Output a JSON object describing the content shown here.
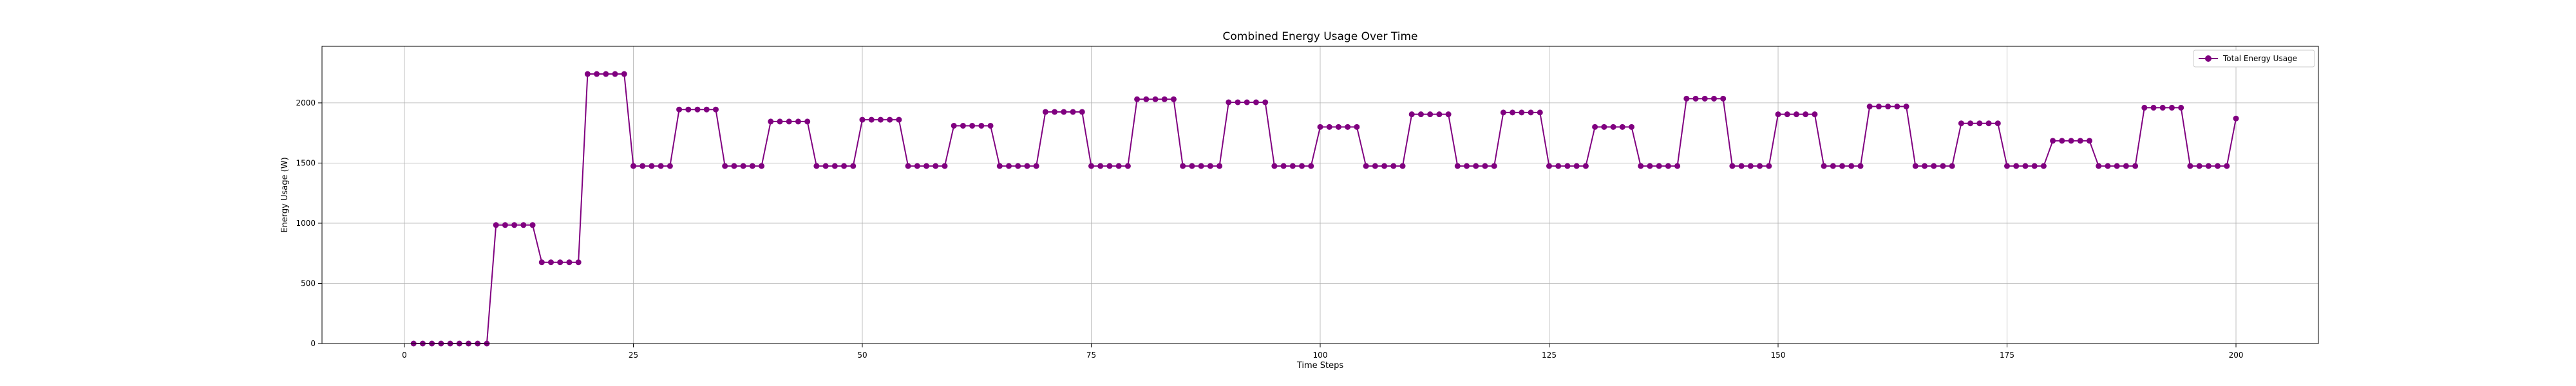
{
  "chart_data": {
    "type": "line",
    "title": "Combined Energy Usage Over Time",
    "xlabel": "Time Steps",
    "ylabel": "Energy Usage (W)",
    "xlim": [
      -9,
      209
    ],
    "ylim": [
      0,
      2470
    ],
    "x_ticks": [
      0,
      25,
      50,
      75,
      100,
      125,
      150,
      175,
      200
    ],
    "y_ticks": [
      0,
      500,
      1000,
      1500,
      2000
    ],
    "grid": true,
    "legend_position": "top-right",
    "series": [
      {
        "name": "Total Energy Usage",
        "color": "#800080",
        "marker": "circle",
        "start_x": 1,
        "x_step": 1,
        "values": [
          0,
          0,
          0,
          0,
          0,
          0,
          0,
          0,
          0,
          985,
          985,
          985,
          985,
          985,
          675,
          675,
          675,
          675,
          675,
          2240,
          2240,
          2240,
          2240,
          2240,
          1475,
          1475,
          1475,
          1475,
          1475,
          1945,
          1945,
          1945,
          1945,
          1945,
          1475,
          1475,
          1475,
          1475,
          1475,
          1845,
          1845,
          1845,
          1845,
          1845,
          1475,
          1475,
          1475,
          1475,
          1475,
          1860,
          1860,
          1860,
          1860,
          1860,
          1475,
          1475,
          1475,
          1475,
          1475,
          1810,
          1810,
          1810,
          1810,
          1810,
          1475,
          1475,
          1475,
          1475,
          1475,
          1925,
          1925,
          1925,
          1925,
          1925,
          1475,
          1475,
          1475,
          1475,
          1475,
          2030,
          2030,
          2030,
          2030,
          2030,
          1475,
          1475,
          1475,
          1475,
          1475,
          2005,
          2005,
          2005,
          2005,
          2005,
          1475,
          1475,
          1475,
          1475,
          1475,
          1800,
          1800,
          1800,
          1800,
          1800,
          1475,
          1475,
          1475,
          1475,
          1475,
          1905,
          1905,
          1905,
          1905,
          1905,
          1475,
          1475,
          1475,
          1475,
          1475,
          1920,
          1920,
          1920,
          1920,
          1920,
          1475,
          1475,
          1475,
          1475,
          1475,
          1800,
          1800,
          1800,
          1800,
          1800,
          1475,
          1475,
          1475,
          1475,
          1475,
          2035,
          2035,
          2035,
          2035,
          2035,
          1475,
          1475,
          1475,
          1475,
          1475,
          1905,
          1905,
          1905,
          1905,
          1905,
          1475,
          1475,
          1475,
          1475,
          1475,
          1970,
          1970,
          1970,
          1970,
          1970,
          1475,
          1475,
          1475,
          1475,
          1475,
          1830,
          1830,
          1830,
          1830,
          1830,
          1475,
          1475,
          1475,
          1475,
          1475,
          1685,
          1685,
          1685,
          1685,
          1685,
          1475,
          1475,
          1475,
          1475,
          1475,
          1960,
          1960,
          1960,
          1960,
          1960,
          1475,
          1475,
          1475,
          1475,
          1475,
          1870
        ]
      }
    ]
  }
}
